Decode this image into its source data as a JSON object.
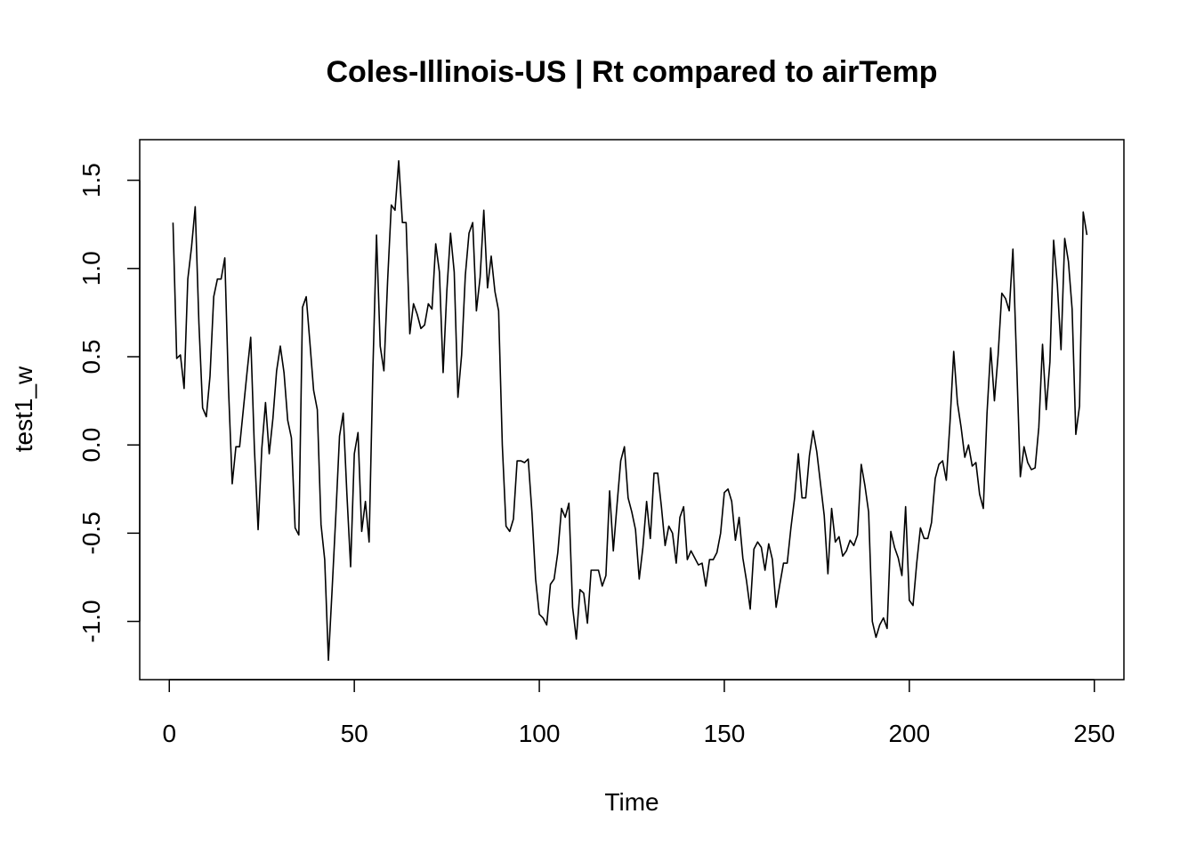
{
  "chart_data": {
    "type": "line",
    "title": "Coles-Illinois-US | Rt compared to airTemp",
    "xlabel": "Time",
    "ylabel": "test1_w",
    "xlim": [
      -8,
      258
    ],
    "ylim": [
      -1.33,
      1.73
    ],
    "x_ticks": [
      0,
      50,
      100,
      150,
      200,
      250
    ],
    "x_tick_labels": [
      "0",
      "50",
      "100",
      "150",
      "200",
      "250"
    ],
    "y_ticks": [
      -1.0,
      -0.5,
      0.0,
      0.5,
      1.0,
      1.5
    ],
    "y_tick_labels": [
      "-1.0",
      "-0.5",
      "0.0",
      "0.5",
      "1.0",
      "1.5"
    ],
    "grid": false,
    "legend": "none",
    "line_color": "#000000",
    "series": [
      {
        "x_start": 1,
        "values": [
          1.26,
          0.49,
          0.51,
          0.32,
          0.94,
          1.12,
          1.35,
          0.69,
          0.21,
          0.16,
          0.39,
          0.84,
          0.94,
          0.94,
          1.06,
          0.32,
          -0.22,
          -0.01,
          -0.01,
          0.2,
          0.41,
          0.61,
          -0.02,
          -0.48,
          -0.02,
          0.24,
          -0.05,
          0.15,
          0.42,
          0.56,
          0.41,
          0.14,
          0.04,
          -0.47,
          -0.51,
          0.78,
          0.84,
          0.58,
          0.31,
          0.2,
          -0.45,
          -0.65,
          -1.22,
          -0.82,
          -0.4,
          0.05,
          0.18,
          -0.28,
          -0.69,
          -0.05,
          0.07,
          -0.49,
          -0.32,
          -0.55,
          0.41,
          1.19,
          0.56,
          0.42,
          0.93,
          1.36,
          1.33,
          1.61,
          1.26,
          1.26,
          0.63,
          0.8,
          0.74,
          0.66,
          0.68,
          0.8,
          0.77,
          1.14,
          0.98,
          0.41,
          0.87,
          1.2,
          0.98,
          0.27,
          0.51,
          0.96,
          1.2,
          1.26,
          0.76,
          0.95,
          1.33,
          0.89,
          1.07,
          0.87,
          0.76,
          0.0,
          -0.46,
          -0.49,
          -0.42,
          -0.09,
          -0.09,
          -0.1,
          -0.08,
          -0.38,
          -0.76,
          -0.96,
          -0.98,
          -1.02,
          -0.79,
          -0.76,
          -0.61,
          -0.36,
          -0.41,
          -0.33,
          -0.92,
          -1.1,
          -0.82,
          -0.84,
          -1.01,
          -0.71,
          -0.71,
          -0.71,
          -0.8,
          -0.74,
          -0.26,
          -0.6,
          -0.34,
          -0.09,
          -0.01,
          -0.3,
          -0.38,
          -0.48,
          -0.76,
          -0.58,
          -0.32,
          -0.53,
          -0.16,
          -0.16,
          -0.35,
          -0.57,
          -0.46,
          -0.5,
          -0.67,
          -0.41,
          -0.35,
          -0.65,
          -0.6,
          -0.64,
          -0.68,
          -0.67,
          -0.8,
          -0.65,
          -0.65,
          -0.61,
          -0.5,
          -0.27,
          -0.25,
          -0.32,
          -0.54,
          -0.41,
          -0.64,
          -0.77,
          -0.93,
          -0.59,
          -0.55,
          -0.58,
          -0.71,
          -0.56,
          -0.65,
          -0.92,
          -0.79,
          -0.67,
          -0.67,
          -0.47,
          -0.3,
          -0.05,
          -0.3,
          -0.3,
          -0.06,
          0.08,
          -0.04,
          -0.22,
          -0.4,
          -0.73,
          -0.36,
          -0.55,
          -0.52,
          -0.63,
          -0.6,
          -0.54,
          -0.57,
          -0.51,
          -0.11,
          -0.23,
          -0.38,
          -1.0,
          -1.09,
          -1.02,
          -0.98,
          -1.04,
          -0.49,
          -0.58,
          -0.64,
          -0.74,
          -0.35,
          -0.88,
          -0.91,
          -0.67,
          -0.47,
          -0.53,
          -0.53,
          -0.44,
          -0.19,
          -0.11,
          -0.09,
          -0.2,
          0.13,
          0.53,
          0.24,
          0.1,
          -0.07,
          0.0,
          -0.12,
          -0.1,
          -0.28,
          -0.36,
          0.18,
          0.55,
          0.25,
          0.51,
          0.86,
          0.83,
          0.76,
          1.11,
          0.47,
          -0.18,
          -0.01,
          -0.1,
          -0.14,
          -0.13,
          0.1,
          0.57,
          0.2,
          0.47,
          1.16,
          0.91,
          0.54,
          1.17,
          1.04,
          0.77,
          0.06,
          0.22,
          1.32,
          1.19
        ]
      }
    ]
  }
}
